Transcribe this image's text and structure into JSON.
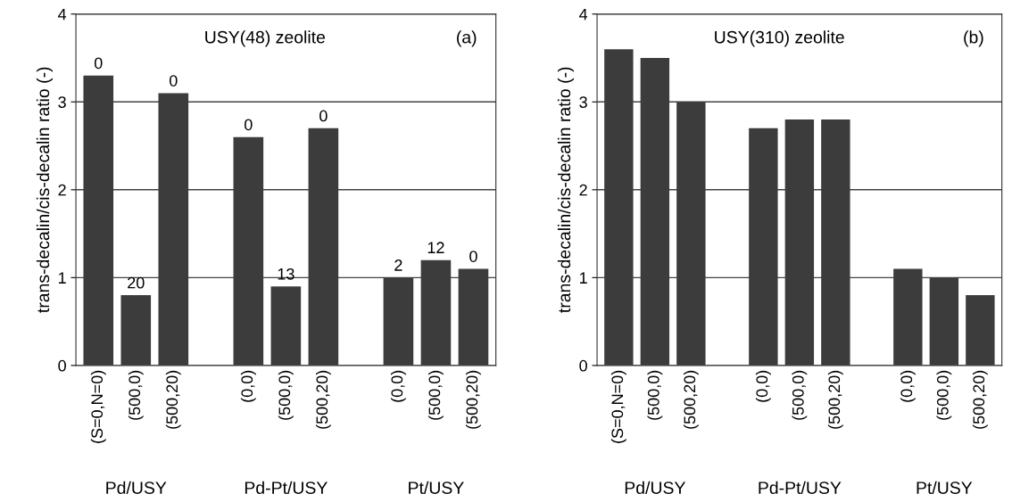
{
  "chart_data": [
    {
      "type": "bar",
      "title": "USY(48) zeolite",
      "ylabel": "trans-decalin/cis-decalin ratio (-)",
      "categories": [
        "(S=0,N=0)",
        "(500,0)",
        "(500,20)",
        null,
        "(0,0)",
        "(500,0)",
        "(500,20)",
        null,
        "(0,0)",
        "(500,0)",
        "(500,20)"
      ],
      "values": [
        3.3,
        0.8,
        3.1,
        null,
        2.6,
        0.9,
        2.7,
        null,
        1.0,
        1.2,
        1.1
      ],
      "color": "#3c3c3c",
      "ylim": [
        0,
        4
      ],
      "yticks": [
        0,
        1,
        2,
        3,
        4
      ],
      "grid": "y",
      "annotations": [
        "(a)",
        "Pd/USY",
        "Pd-Pt/USY",
        "Pt/USY",
        "0",
        "20",
        "0",
        "0",
        "13",
        "0",
        "2",
        "12",
        "0"
      ]
    },
    {
      "type": "bar",
      "title": "USY(310) zeolite",
      "ylabel": "trans-decalin/cis-decalin ratio (-)",
      "categories": [
        "(S=0,N=0)",
        "(500,0)",
        "(500,20)",
        null,
        "(0,0)",
        "(500,0)",
        "(500,20)",
        null,
        "(0,0)",
        "(500,0)",
        "(500,20)"
      ],
      "values": [
        3.6,
        3.5,
        3.0,
        null,
        2.7,
        2.8,
        2.8,
        null,
        1.1,
        1.0,
        0.8
      ],
      "color": "#3c3c3c",
      "ylim": [
        0,
        4
      ],
      "yticks": [
        0,
        1,
        2,
        3,
        4
      ],
      "grid": "y",
      "annotations": [
        "(b)",
        "Pd/USY",
        "Pd-Pt/USY",
        "Pt/USY"
      ]
    }
  ]
}
